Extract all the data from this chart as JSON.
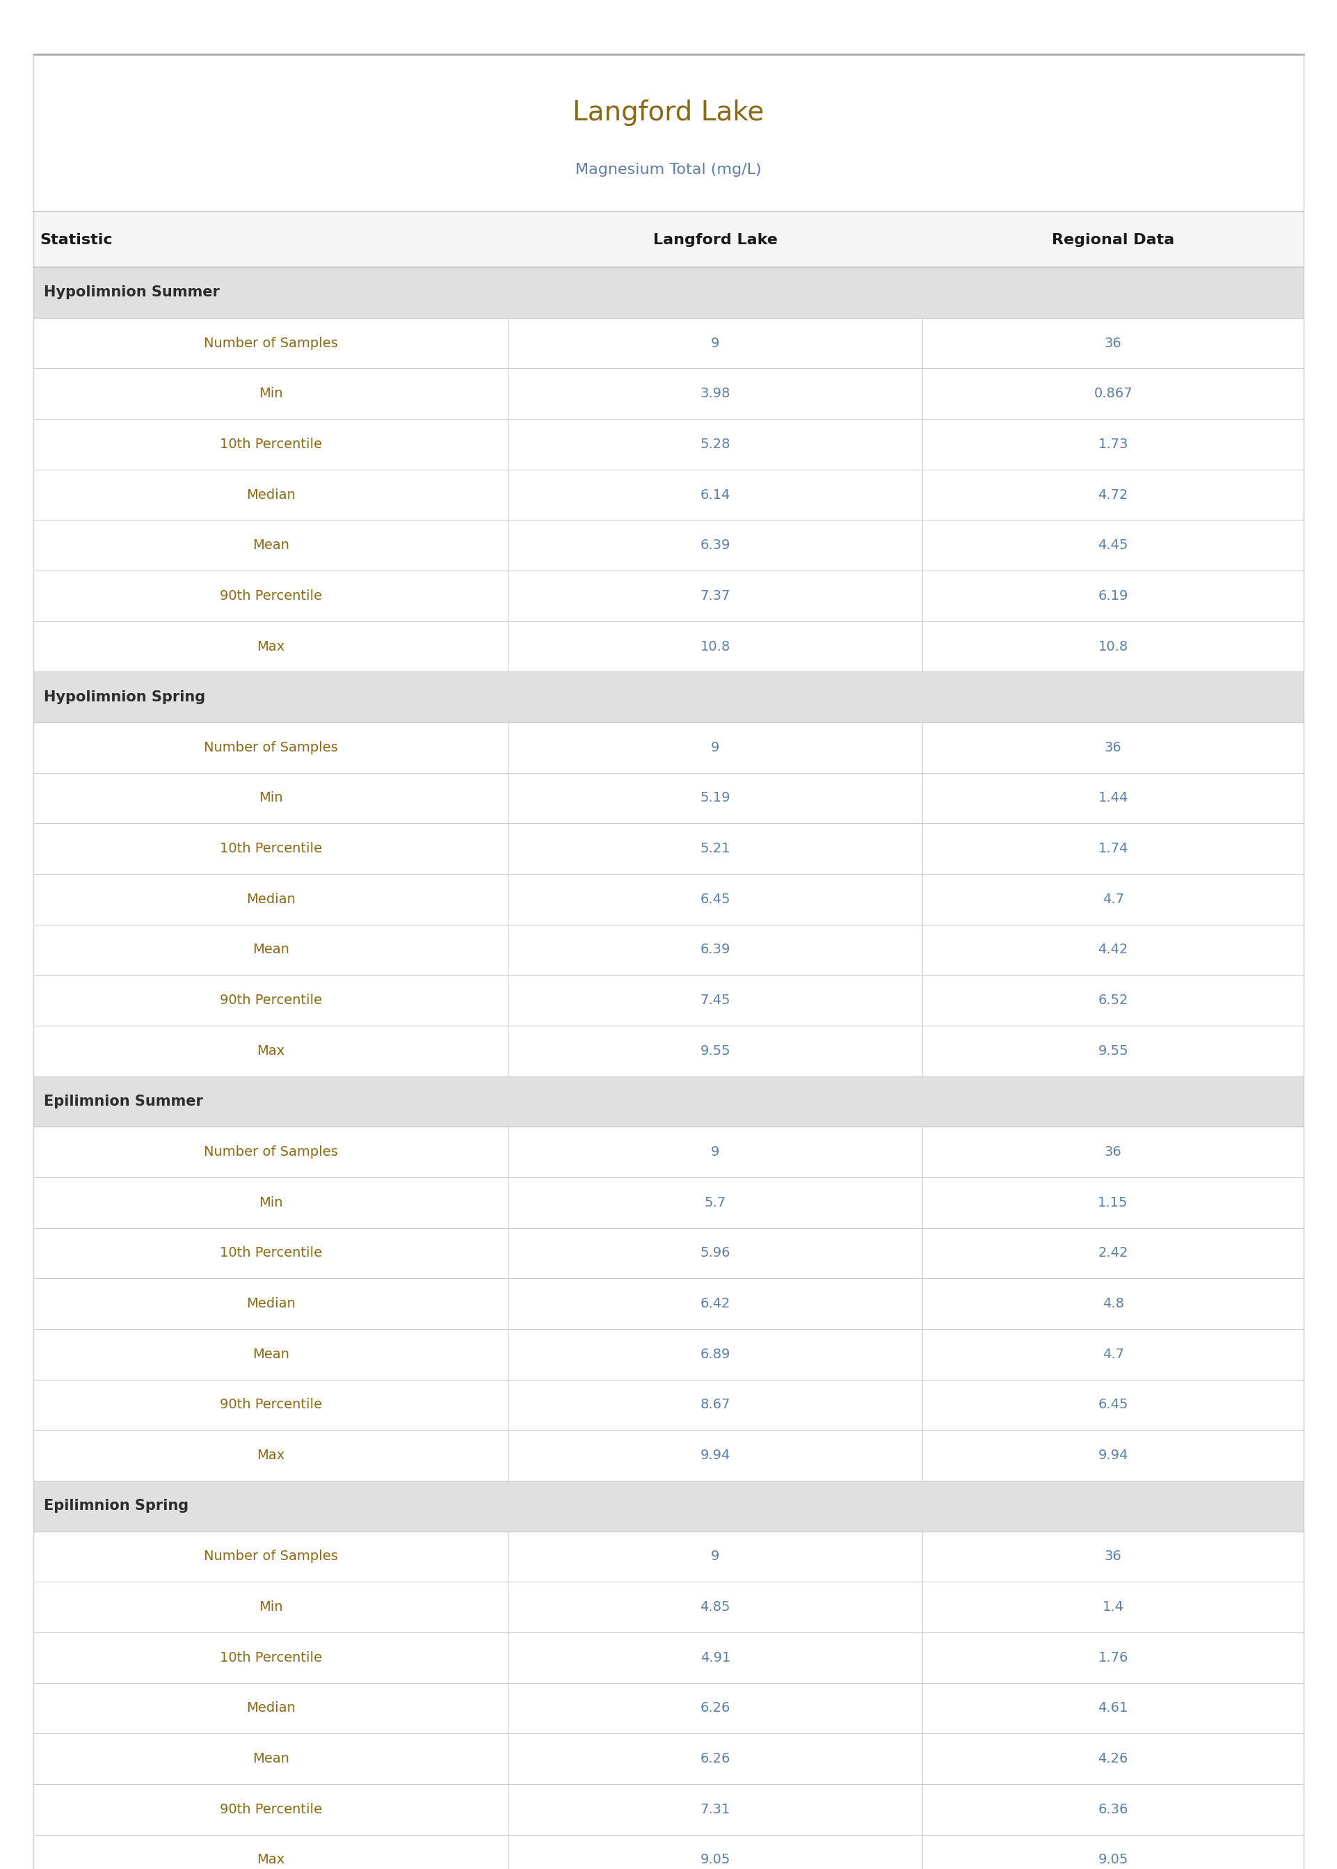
{
  "title": "Langford Lake",
  "subtitle": "Magnesium Total (mg/L)",
  "col_headers": [
    "Statistic",
    "Langford Lake",
    "Regional Data"
  ],
  "sections": [
    {
      "header": "Hypolimnion Summer",
      "rows": [
        [
          "Number of Samples",
          "9",
          "36"
        ],
        [
          "Min",
          "3.98",
          "0.867"
        ],
        [
          "10th Percentile",
          "5.28",
          "1.73"
        ],
        [
          "Median",
          "6.14",
          "4.72"
        ],
        [
          "Mean",
          "6.39",
          "4.45"
        ],
        [
          "90th Percentile",
          "7.37",
          "6.19"
        ],
        [
          "Max",
          "10.8",
          "10.8"
        ]
      ]
    },
    {
      "header": "Hypolimnion Spring",
      "rows": [
        [
          "Number of Samples",
          "9",
          "36"
        ],
        [
          "Min",
          "5.19",
          "1.44"
        ],
        [
          "10th Percentile",
          "5.21",
          "1.74"
        ],
        [
          "Median",
          "6.45",
          "4.7"
        ],
        [
          "Mean",
          "6.39",
          "4.42"
        ],
        [
          "90th Percentile",
          "7.45",
          "6.52"
        ],
        [
          "Max",
          "9.55",
          "9.55"
        ]
      ]
    },
    {
      "header": "Epilimnion Summer",
      "rows": [
        [
          "Number of Samples",
          "9",
          "36"
        ],
        [
          "Min",
          "5.7",
          "1.15"
        ],
        [
          "10th Percentile",
          "5.96",
          "2.42"
        ],
        [
          "Median",
          "6.42",
          "4.8"
        ],
        [
          "Mean",
          "6.89",
          "4.7"
        ],
        [
          "90th Percentile",
          "8.67",
          "6.45"
        ],
        [
          "Max",
          "9.94",
          "9.94"
        ]
      ]
    },
    {
      "header": "Epilimnion Spring",
      "rows": [
        [
          "Number of Samples",
          "9",
          "36"
        ],
        [
          "Min",
          "4.85",
          "1.4"
        ],
        [
          "10th Percentile",
          "4.91",
          "1.76"
        ],
        [
          "Median",
          "6.26",
          "4.61"
        ],
        [
          "Mean",
          "6.26",
          "4.26"
        ],
        [
          "90th Percentile",
          "7.31",
          "6.36"
        ],
        [
          "Max",
          "9.05",
          "9.05"
        ]
      ]
    }
  ],
  "title_color": "#8B6914",
  "subtitle_color": "#5B7FA6",
  "header_bg_color": "#E0E0E0",
  "header_text_color": "#2C2C2C",
  "col_header_bg_color": "#F5F5F5",
  "col_header_text_color": "#1A1A1A",
  "row_bg_color": "#FFFFFF",
  "row_text_color": "#5B7FA6",
  "stat_text_color": "#8B6914",
  "border_color": "#CCCCCC",
  "top_border_color": "#AAAAAA",
  "fig_bg_color": "#FFFFFF"
}
